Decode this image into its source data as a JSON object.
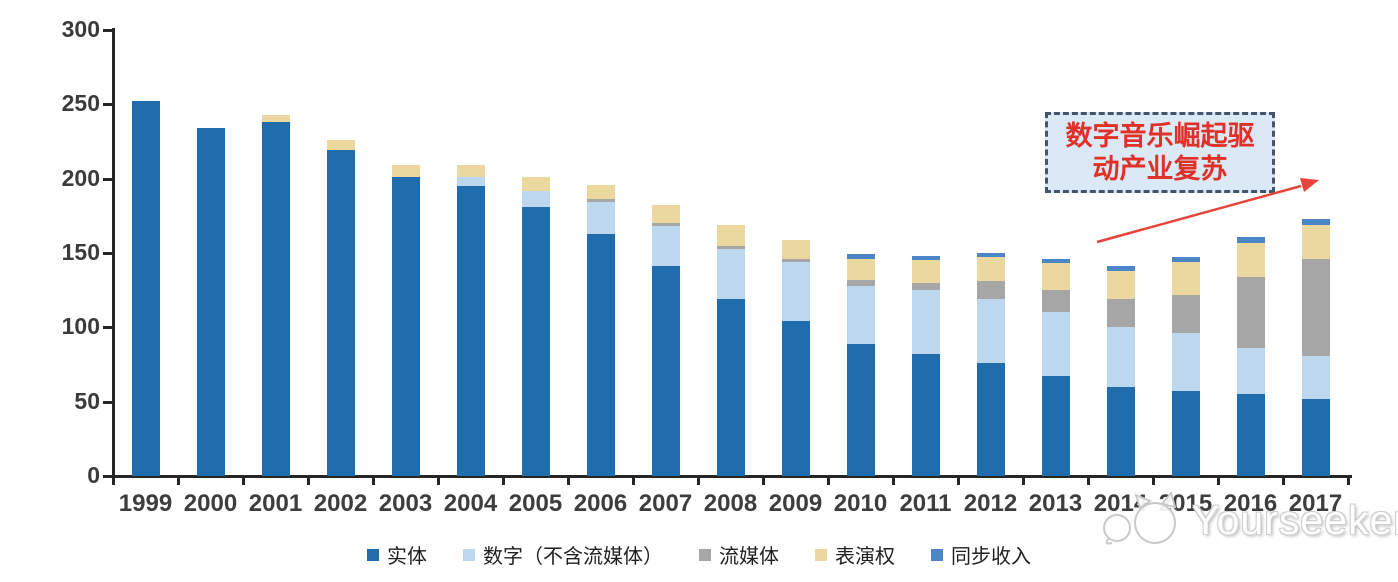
{
  "chart_data": {
    "type": "bar",
    "stacked": true,
    "title": "",
    "xlabel": "",
    "ylabel": "",
    "ylim": [
      0,
      300
    ],
    "yticks": [
      0,
      50,
      100,
      150,
      200,
      250,
      300
    ],
    "grid": false,
    "legend_position": "bottom",
    "categories": [
      "1999",
      "2000",
      "2001",
      "2002",
      "2003",
      "2004",
      "2005",
      "2006",
      "2007",
      "2008",
      "2009",
      "2010",
      "2011",
      "2012",
      "2013",
      "2014",
      "2015",
      "2016",
      "2017"
    ],
    "series": [
      {
        "name": "实体",
        "color": "#1F6DAD",
        "values": [
          252,
          234,
          238,
          219,
          201,
          195,
          181,
          163,
          141,
          119,
          104,
          89,
          82,
          76,
          67,
          60,
          57,
          55,
          52
        ]
      },
      {
        "name": "数字（不含流媒体）",
        "color": "#BDD7EE",
        "values": [
          0,
          0,
          0,
          0,
          0,
          6,
          11,
          21,
          27,
          34,
          40,
          39,
          43,
          43,
          43,
          40,
          39,
          31,
          29
        ]
      },
      {
        "name": "流媒体",
        "color": "#A6A6A6",
        "values": [
          0,
          0,
          0,
          0,
          0,
          0,
          0,
          2,
          2,
          2,
          2,
          4,
          5,
          12,
          15,
          19,
          26,
          48,
          65
        ]
      },
      {
        "name": "表演权",
        "color": "#EBD89F",
        "values": [
          0,
          0,
          5,
          7,
          8,
          8,
          9,
          10,
          12,
          14,
          13,
          14,
          15,
          16,
          18,
          19,
          22,
          23,
          23
        ]
      },
      {
        "name": "同步收入",
        "color": "#4D86C6",
        "values": [
          0,
          0,
          0,
          0,
          0,
          0,
          0,
          0,
          0,
          0,
          0,
          3,
          3,
          3,
          3,
          3,
          3,
          4,
          4
        ]
      }
    ]
  },
  "annotation": {
    "line1": "数字音乐崛起驱",
    "line2": "动产业复苏",
    "box_fill": "#DBE9F7",
    "border_color": "#44546A",
    "text_color": "#E03028",
    "arrow_color": "#E8433A"
  },
  "watermark": {
    "text": "Yourseeker",
    "logo_icon": "cat-logo-icon"
  }
}
